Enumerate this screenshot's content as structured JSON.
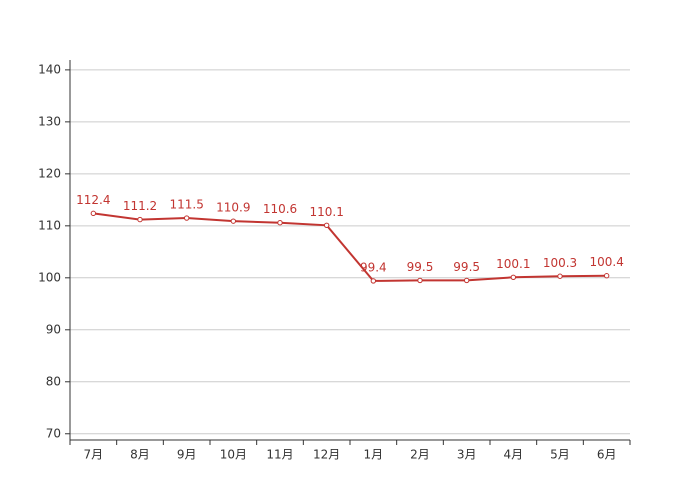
{
  "chart_data": {
    "type": "line",
    "categories": [
      "7月",
      "8月",
      "9月",
      "10月",
      "11月",
      "12月",
      "1月",
      "2月",
      "3月",
      "4月",
      "5月",
      "6月"
    ],
    "values": [
      112.4,
      111.2,
      111.5,
      110.9,
      110.6,
      110.1,
      99.4,
      99.5,
      99.5,
      100.1,
      100.3,
      100.4
    ],
    "color": "#c23531",
    "ylim": [
      68.8,
      141.9
    ],
    "yticks": [
      70,
      80,
      90,
      100,
      110,
      120,
      130,
      140
    ],
    "grid": true
  }
}
